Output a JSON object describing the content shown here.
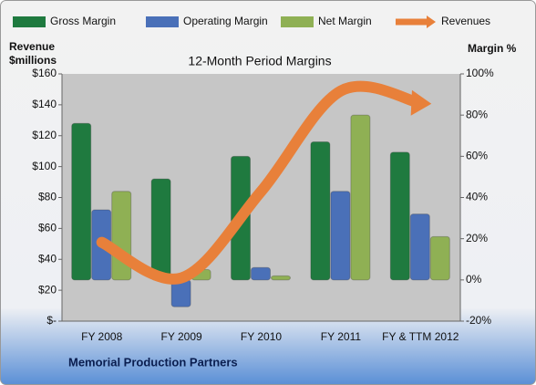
{
  "chart_data": {
    "type": "bar-line",
    "title": "12-Month Period Margins",
    "ylabel_lines": [
      "Revenue",
      "$millions"
    ],
    "y2label": "Margin %",
    "footer": "Memorial Production Partners",
    "categories": [
      "FY 2008",
      "FY 2009",
      "FY 2010",
      "FY 2011",
      "FY & TTM 2012"
    ],
    "series": [
      {
        "name": "Gross Margin",
        "color": "#1f7a3f",
        "type": "bar",
        "axis": "y2",
        "values": [
          76,
          49,
          60,
          67,
          62
        ]
      },
      {
        "name": "Operating Margin",
        "color": "#4a70b8",
        "type": "bar",
        "axis": "y2",
        "values": [
          34,
          -13,
          6,
          43,
          32
        ]
      },
      {
        "name": "Net Margin",
        "color": "#8fb054",
        "type": "bar",
        "axis": "y2",
        "values": [
          43,
          5,
          2,
          80,
          21
        ]
      },
      {
        "name": "Revenues",
        "color": "#e8803a",
        "type": "line",
        "axis": "y",
        "values": [
          51,
          28,
          84,
          149,
          141
        ]
      }
    ],
    "ylim": [
      0,
      160
    ],
    "yticks": [
      {
        "value": 0,
        "label": "$-"
      },
      {
        "value": 20,
        "label": "$20"
      },
      {
        "value": 40,
        "label": "$40"
      },
      {
        "value": 60,
        "label": "$60"
      },
      {
        "value": 80,
        "label": "$80"
      },
      {
        "value": 100,
        "label": "$100"
      },
      {
        "value": 120,
        "label": "$120"
      },
      {
        "value": 140,
        "label": "$140"
      },
      {
        "value": 160,
        "label": "$160"
      }
    ],
    "y2lim": [
      -20,
      100
    ],
    "y2ticks": [
      {
        "value": -20,
        "label": "-20%"
      },
      {
        "value": 0,
        "label": "0%"
      },
      {
        "value": 20,
        "label": "20%"
      },
      {
        "value": 40,
        "label": "40%"
      },
      {
        "value": 60,
        "label": "60%"
      },
      {
        "value": 80,
        "label": "80%"
      },
      {
        "value": 100,
        "label": "100%"
      }
    ],
    "legend": "top"
  }
}
